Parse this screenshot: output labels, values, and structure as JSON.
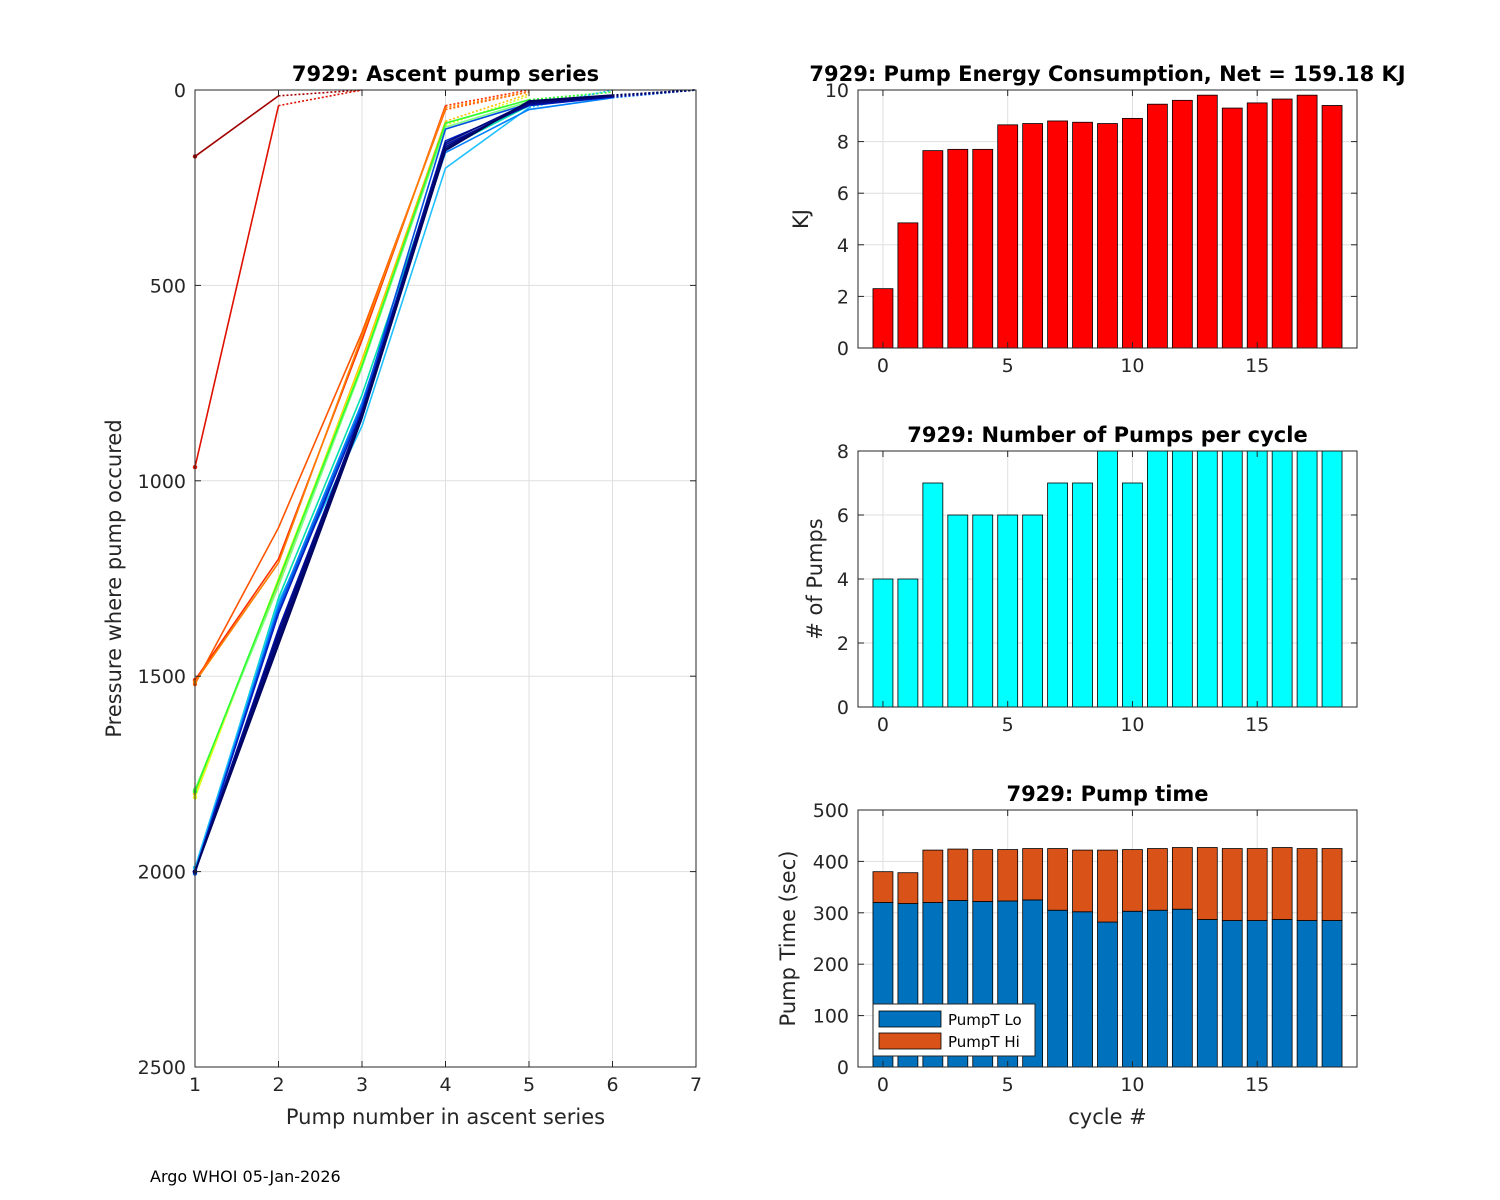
{
  "footer": "Argo WHOI 05-Jan-2026",
  "chart_data": [
    {
      "id": "ascent",
      "type": "line",
      "title": "7929: Ascent pump series",
      "xlabel": "Pump number in ascent series",
      "ylabel": "Pressure where pump occured",
      "xlim": [
        1,
        7
      ],
      "ylim": [
        0,
        2500
      ],
      "y_reversed": true,
      "grid": true,
      "xticks": [
        "1",
        "2",
        "3",
        "4",
        "5",
        "6",
        "7"
      ],
      "yticks": [
        "0",
        "500",
        "1000",
        "1500",
        "2000",
        "2500"
      ],
      "note": "Line colors run from red (early cycles) through yellow, green, cyan, blue to dark navy (late cycles); dotted segments continue each series to the surface.",
      "series": [
        {
          "cycle": 0,
          "color": "#a00000",
          "solid": [
            [
              1,
              170
            ],
            [
              2,
              15
            ]
          ],
          "dotted": [
            [
              2,
              15
            ],
            [
              3,
              0
            ]
          ]
        },
        {
          "cycle": 1,
          "color": "#e01000",
          "solid": [
            [
              1,
              965
            ],
            [
              2,
              40
            ]
          ],
          "dotted": [
            [
              2,
              40
            ],
            [
              3,
              0
            ]
          ]
        },
        {
          "cycle": 2,
          "color": "#ff3000",
          "solid": [
            [
              1,
              1510
            ],
            [
              2,
              1200
            ],
            [
              3,
              640
            ],
            [
              4,
              40
            ]
          ],
          "dotted": [
            [
              4,
              40
            ],
            [
              5,
              0
            ]
          ]
        },
        {
          "cycle": 3,
          "color": "#ff5500",
          "solid": [
            [
              1,
              1520
            ],
            [
              2,
              1120
            ],
            [
              3,
              620
            ],
            [
              4,
              50
            ]
          ],
          "dotted": [
            [
              4,
              50
            ],
            [
              5,
              5
            ]
          ]
        },
        {
          "cycle": 4,
          "color": "#ff7f00",
          "solid": [
            [
              1,
              1515
            ],
            [
              2,
              1210
            ],
            [
              3,
              630
            ],
            [
              4,
              45
            ]
          ],
          "dotted": [
            [
              4,
              45
            ],
            [
              5,
              5
            ]
          ]
        },
        {
          "cycle": 5,
          "color": "#ffbf00",
          "solid": [
            [
              1,
              1800
            ],
            [
              2,
              1260
            ],
            [
              3,
              690
            ],
            [
              4,
              80
            ]
          ],
          "dotted": [
            [
              4,
              80
            ],
            [
              5,
              10
            ]
          ]
        },
        {
          "cycle": 6,
          "color": "#e0ff20",
          "solid": [
            [
              1,
              1810
            ],
            [
              2,
              1250
            ],
            [
              3,
              700
            ],
            [
              4,
              90
            ]
          ],
          "dotted": [
            [
              4,
              90
            ],
            [
              5,
              15
            ]
          ]
        },
        {
          "cycle": 7,
          "color": "#80ff80",
          "solid": [
            [
              1,
              1790
            ],
            [
              2,
              1270
            ],
            [
              3,
              710
            ],
            [
              4,
              95
            ],
            [
              5,
              30
            ]
          ],
          "dotted": [
            [
              5,
              30
            ],
            [
              6,
              5
            ]
          ]
        },
        {
          "cycle": 8,
          "color": "#30ff30",
          "solid": [
            [
              1,
              1795
            ],
            [
              2,
              1255
            ],
            [
              3,
              705
            ],
            [
              4,
              85
            ],
            [
              5,
              25
            ]
          ],
          "dotted": [
            [
              5,
              25
            ],
            [
              6,
              5
            ]
          ]
        },
        {
          "cycle": 9,
          "color": "#00e0b0",
          "solid": [
            [
              1,
              2000
            ],
            [
              2,
              1300
            ],
            [
              3,
              780
            ],
            [
              4,
              150
            ],
            [
              5,
              40
            ],
            [
              6,
              15
            ]
          ],
          "dotted": [
            [
              6,
              15
            ],
            [
              7,
              0
            ]
          ]
        },
        {
          "cycle": 10,
          "color": "#20c0ff",
          "solid": [
            [
              1,
              1990
            ],
            [
              2,
              1310
            ],
            [
              3,
              860
            ],
            [
              4,
              200
            ],
            [
              5,
              45
            ]
          ],
          "dotted": [
            [
              5,
              45
            ],
            [
              6,
              0
            ]
          ]
        },
        {
          "cycle": 11,
          "color": "#0080ff",
          "solid": [
            [
              1,
              2000
            ],
            [
              2,
              1320
            ],
            [
              3,
              800
            ],
            [
              4,
              160
            ],
            [
              5,
              50
            ],
            [
              6,
              20
            ]
          ],
          "dotted": [
            [
              6,
              20
            ],
            [
              7,
              0
            ]
          ]
        },
        {
          "cycle": 12,
          "color": "#0050e0",
          "solid": [
            [
              1,
              2005
            ],
            [
              2,
              1330
            ],
            [
              3,
              810
            ],
            [
              4,
              100
            ],
            [
              5,
              35
            ],
            [
              6,
              15
            ]
          ],
          "dotted": [
            [
              6,
              15
            ],
            [
              7,
              0
            ]
          ]
        },
        {
          "cycle": 13,
          "color": "#0020c0",
          "solid": [
            [
              1,
              2000
            ],
            [
              2,
              1340
            ],
            [
              3,
              820
            ],
            [
              4,
              130
            ],
            [
              5,
              40
            ],
            [
              6,
              18
            ]
          ],
          "dotted": [
            [
              6,
              18
            ],
            [
              7,
              0
            ]
          ]
        },
        {
          "cycle": 14,
          "color": "#0010a0",
          "solid": [
            [
              1,
              2000
            ],
            [
              2,
              1380
            ],
            [
              3,
              830
            ],
            [
              4,
              140
            ],
            [
              5,
              38
            ],
            [
              6,
              17
            ]
          ],
          "dotted": [
            [
              6,
              17
            ],
            [
              7,
              0
            ]
          ]
        },
        {
          "cycle": 15,
          "color": "#000a80",
          "solid": [
            [
              1,
              2000
            ],
            [
              2,
              1390
            ],
            [
              3,
              825
            ],
            [
              4,
              145
            ],
            [
              5,
              35
            ],
            [
              6,
              16
            ]
          ],
          "dotted": [
            [
              6,
              16
            ],
            [
              7,
              0
            ]
          ]
        },
        {
          "cycle": 16,
          "color": "#00087a",
          "solid": [
            [
              1,
              2000
            ],
            [
              2,
              1400
            ],
            [
              3,
              830
            ],
            [
              4,
              135
            ],
            [
              5,
              32
            ],
            [
              6,
              15
            ]
          ],
          "dotted": [
            [
              6,
              15
            ],
            [
              7,
              0
            ]
          ]
        },
        {
          "cycle": 17,
          "color": "#000670",
          "solid": [
            [
              1,
              2000
            ],
            [
              2,
              1410
            ],
            [
              3,
              835
            ],
            [
              4,
              150
            ],
            [
              5,
              30
            ],
            [
              6,
              14
            ]
          ],
          "dotted": [
            [
              6,
              14
            ],
            [
              7,
              0
            ]
          ]
        },
        {
          "cycle": 18,
          "color": "#000560",
          "solid": [
            [
              1,
              2000
            ],
            [
              2,
              1420
            ],
            [
              3,
              840
            ],
            [
              4,
              155
            ],
            [
              5,
              28
            ],
            [
              6,
              13
            ]
          ],
          "dotted": [
            [
              6,
              13
            ],
            [
              7,
              0
            ]
          ]
        }
      ]
    },
    {
      "id": "energy",
      "type": "bar",
      "title": "7929: Pump Energy Consumption,  Net = 159.18 KJ",
      "xlabel": "",
      "ylabel": "KJ",
      "xlim": [
        -1,
        19
      ],
      "ylim": [
        0,
        10
      ],
      "grid": true,
      "bar_color": "#ff0000",
      "xticks": [
        "0",
        "5",
        "10",
        "15"
      ],
      "yticks": [
        "0",
        "2",
        "4",
        "6",
        "8",
        "10"
      ],
      "categories": [
        0,
        1,
        2,
        3,
        4,
        5,
        6,
        7,
        8,
        9,
        10,
        11,
        12,
        13,
        14,
        15,
        16,
        17,
        18
      ],
      "values": [
        2.3,
        4.85,
        7.65,
        7.7,
        7.7,
        8.65,
        8.7,
        8.8,
        8.75,
        8.7,
        8.9,
        9.45,
        9.6,
        9.8,
        9.3,
        9.5,
        9.65,
        9.8,
        9.4
      ]
    },
    {
      "id": "npumps",
      "type": "bar",
      "title": "7929: Number of Pumps per cycle",
      "xlabel": "",
      "ylabel": "# of Pumps",
      "xlim": [
        -1,
        19
      ],
      "ylim": [
        0,
        8
      ],
      "grid": true,
      "bar_color": "#00ffff",
      "xticks": [
        "0",
        "5",
        "10",
        "15"
      ],
      "yticks": [
        "0",
        "2",
        "4",
        "6",
        "8"
      ],
      "categories": [
        0,
        1,
        2,
        3,
        4,
        5,
        6,
        7,
        8,
        9,
        10,
        11,
        12,
        13,
        14,
        15,
        16,
        17,
        18
      ],
      "values": [
        4,
        4,
        7,
        6,
        6,
        6,
        6,
        7,
        7,
        8,
        7,
        8,
        8,
        8,
        8,
        8,
        8,
        8,
        8
      ]
    },
    {
      "id": "pumptime",
      "type": "bar",
      "stacked": true,
      "title": "7929: Pump time",
      "xlabel": "cycle #",
      "ylabel": "Pump Time (sec)",
      "xlim": [
        -1,
        19
      ],
      "ylim": [
        0,
        500
      ],
      "grid": true,
      "legend": "bottom-left",
      "xticks": [
        "0",
        "5",
        "10",
        "15"
      ],
      "yticks": [
        "0",
        "100",
        "200",
        "300",
        "400",
        "500"
      ],
      "categories": [
        0,
        1,
        2,
        3,
        4,
        5,
        6,
        7,
        8,
        9,
        10,
        11,
        12,
        13,
        14,
        15,
        16,
        17,
        18
      ],
      "series": [
        {
          "name": "PumpT Lo",
          "color": "#0072bd",
          "values": [
            320,
            318,
            320,
            324,
            322,
            323,
            325,
            305,
            302,
            282,
            303,
            305,
            307,
            287,
            285,
            285,
            287,
            285,
            285
          ]
        },
        {
          "name": "PumpT Hi",
          "color": "#d95319",
          "values": [
            60,
            60,
            102,
            100,
            101,
            100,
            100,
            120,
            120,
            140,
            120,
            120,
            120,
            140,
            140,
            140,
            140,
            140,
            140
          ]
        }
      ]
    }
  ]
}
